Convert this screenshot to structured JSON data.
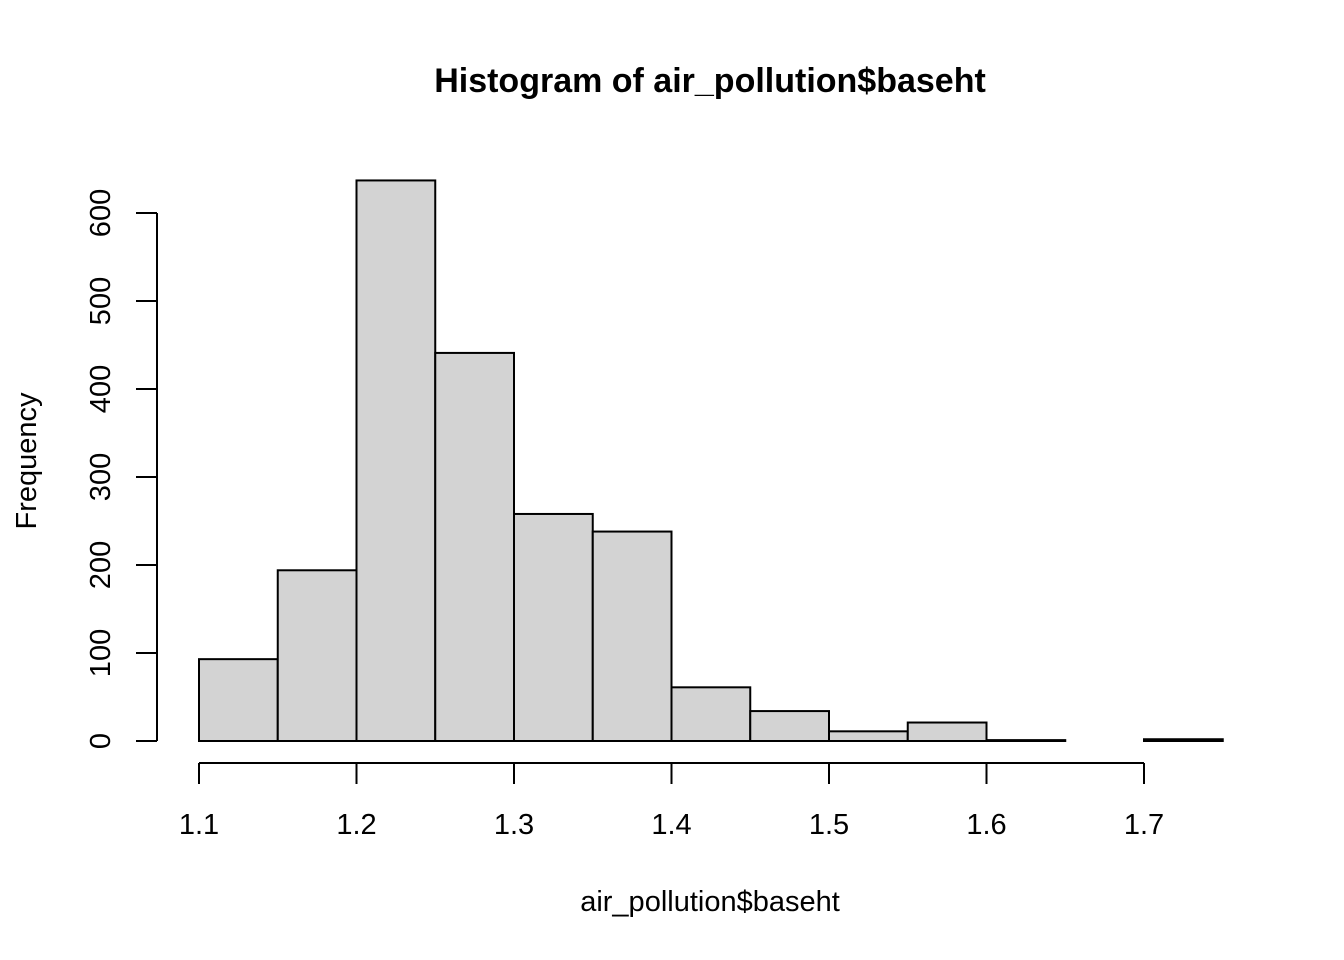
{
  "chart_data": {
    "type": "bar",
    "title": "Histogram of air_pollution$baseht",
    "xlabel": "air_pollution$baseht",
    "ylabel": "Frequency",
    "bin_edges": [
      1.1,
      1.15,
      1.2,
      1.25,
      1.3,
      1.35,
      1.4,
      1.45,
      1.5,
      1.55,
      1.6,
      1.65,
      1.7,
      1.75
    ],
    "values": [
      93,
      194,
      637,
      441,
      258,
      238,
      61,
      34,
      11,
      21,
      1,
      0,
      2
    ],
    "x_ticks": [
      1.1,
      1.2,
      1.3,
      1.4,
      1.5,
      1.6,
      1.7
    ],
    "x_tick_labels": [
      "1.1",
      "1.2",
      "1.3",
      "1.4",
      "1.5",
      "1.6",
      "1.7"
    ],
    "y_ticks": [
      0,
      100,
      200,
      300,
      400,
      500,
      600
    ],
    "y_tick_labels": [
      "0",
      "100",
      "200",
      "300",
      "400",
      "500",
      "600"
    ],
    "xlim": [
      1.1,
      1.75
    ],
    "ylim": [
      0,
      637
    ],
    "grid": false,
    "colors": {
      "bar_fill": "#d3d3d3",
      "bar_stroke": "#000000",
      "background": "#ffffff"
    }
  }
}
